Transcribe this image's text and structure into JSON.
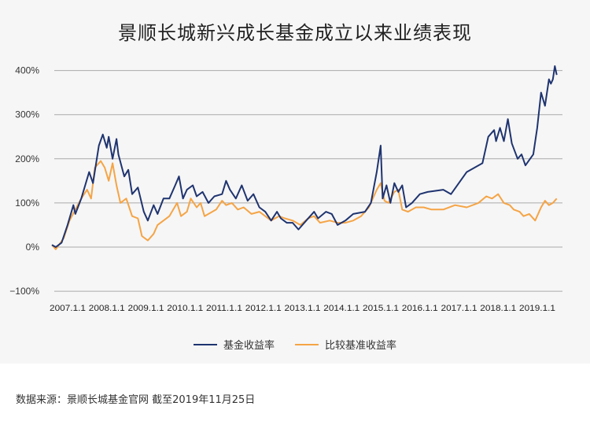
{
  "chart_data": {
    "type": "line",
    "title": "景顺长城新兴成长基金成立以来业绩表现",
    "xlabel": "",
    "ylabel": "",
    "ylim": [
      -100,
      400
    ],
    "yticks": [
      "400%",
      "300%",
      "200%",
      "100%",
      "0%",
      "−100%"
    ],
    "ytick_values": [
      400,
      300,
      200,
      100,
      0,
      -100
    ],
    "xticks": [
      "2007.1.1",
      "2008.1.1",
      "2009.1.1",
      "2010.1.1",
      "2011.1.1",
      "2012.1.1",
      "2013.1.1",
      "2014.1.1",
      "2015.1.1",
      "2016.1.1",
      "2017.1.1",
      "2018.1.1",
      "2019.1.1"
    ],
    "grid": true,
    "legend_position": "bottom",
    "colors": {
      "fund": "#1f3470",
      "benchmark": "#f5a445"
    },
    "series": [
      {
        "name": "基金收益率",
        "points": [
          [
            "2007-01-01",
            5
          ],
          [
            "2007-02-06",
            0
          ],
          [
            "2007-04-01",
            10
          ],
          [
            "2007-05-27",
            50
          ],
          [
            "2007-07-20",
            95
          ],
          [
            "2007-08-08",
            75
          ],
          [
            "2007-10-02",
            110
          ],
          [
            "2007-12-14",
            170
          ],
          [
            "2008-01-19",
            145
          ],
          [
            "2008-03-14",
            230
          ],
          [
            "2008-04-20",
            255
          ],
          [
            "2008-05-27",
            225
          ],
          [
            "2008-06-14",
            250
          ],
          [
            "2008-07-20",
            200
          ],
          [
            "2008-08-26",
            245
          ],
          [
            "2008-09-13",
            210
          ],
          [
            "2008-11-07",
            160
          ],
          [
            "2008-12-14",
            175
          ],
          [
            "2009-01-19",
            120
          ],
          [
            "2009-03-14",
            135
          ],
          [
            "2009-05-08",
            80
          ],
          [
            "2009-06-14",
            60
          ],
          [
            "2009-08-08",
            95
          ],
          [
            "2009-09-13",
            75
          ],
          [
            "2009-11-07",
            110
          ],
          [
            "2010-01-01",
            110
          ],
          [
            "2010-02-25",
            140
          ],
          [
            "2010-04-01",
            160
          ],
          [
            "2010-05-08",
            110
          ],
          [
            "2010-06-14",
            130
          ],
          [
            "2010-08-08",
            140
          ],
          [
            "2010-09-13",
            115
          ],
          [
            "2010-11-07",
            125
          ],
          [
            "2011-01-01",
            100
          ],
          [
            "2011-02-25",
            115
          ],
          [
            "2011-05-08",
            120
          ],
          [
            "2011-06-14",
            150
          ],
          [
            "2011-07-20",
            130
          ],
          [
            "2011-09-13",
            110
          ],
          [
            "2011-11-07",
            140
          ],
          [
            "2012-01-01",
            105
          ],
          [
            "2012-02-25",
            120
          ],
          [
            "2012-04-20",
            90
          ],
          [
            "2012-06-14",
            80
          ],
          [
            "2012-08-08",
            60
          ],
          [
            "2012-10-02",
            80
          ],
          [
            "2012-11-07",
            65
          ],
          [
            "2013-01-01",
            55
          ],
          [
            "2013-02-25",
            55
          ],
          [
            "2013-04-20",
            40
          ],
          [
            "2013-07-02",
            60
          ],
          [
            "2013-09-13",
            80
          ],
          [
            "2013-10-20",
            65
          ],
          [
            "2014-01-01",
            80
          ],
          [
            "2014-02-25",
            75
          ],
          [
            "2014-04-20",
            50
          ],
          [
            "2014-07-02",
            60
          ],
          [
            "2014-09-13",
            75
          ],
          [
            "2015-01-01",
            80
          ],
          [
            "2015-02-25",
            100
          ],
          [
            "2015-04-20",
            170
          ],
          [
            "2015-05-27",
            230
          ],
          [
            "2015-06-14",
            110
          ],
          [
            "2015-07-20",
            140
          ],
          [
            "2015-08-26",
            100
          ],
          [
            "2015-10-02",
            145
          ],
          [
            "2015-11-07",
            125
          ],
          [
            "2015-12-14",
            140
          ],
          [
            "2016-01-19",
            90
          ],
          [
            "2016-03-14",
            100
          ],
          [
            "2016-05-27",
            120
          ],
          [
            "2016-08-08",
            125
          ],
          [
            "2017-01-01",
            130
          ],
          [
            "2017-03-14",
            120
          ],
          [
            "2017-08-08",
            170
          ],
          [
            "2017-10-20",
            180
          ],
          [
            "2018-01-01",
            190
          ],
          [
            "2018-02-25",
            250
          ],
          [
            "2018-04-20",
            265
          ],
          [
            "2018-05-08",
            240
          ],
          [
            "2018-06-14",
            270
          ],
          [
            "2018-07-20",
            240
          ],
          [
            "2018-08-26",
            290
          ],
          [
            "2018-10-02",
            235
          ],
          [
            "2018-11-25",
            200
          ],
          [
            "2019-01-01",
            210
          ],
          [
            "2019-02-06",
            185
          ],
          [
            "2019-04-20",
            210
          ],
          [
            "2019-05-27",
            270
          ],
          [
            "2019-07-02",
            350
          ],
          [
            "2019-08-08",
            320
          ],
          [
            "2019-09-13",
            380
          ],
          [
            "2019-10-02",
            370
          ],
          [
            "2019-10-20",
            380
          ],
          [
            "2019-11-07",
            410
          ],
          [
            "2019-11-25",
            390
          ]
        ]
      },
      {
        "name": "比较基准收益率",
        "points": [
          [
            "2007-01-01",
            5
          ],
          [
            "2007-02-06",
            -5
          ],
          [
            "2007-04-20",
            20
          ],
          [
            "2007-06-14",
            60
          ],
          [
            "2007-08-08",
            85
          ],
          [
            "2007-10-02",
            110
          ],
          [
            "2007-11-25",
            130
          ],
          [
            "2008-01-01",
            110
          ],
          [
            "2008-02-06",
            180
          ],
          [
            "2008-04-01",
            195
          ],
          [
            "2008-05-08",
            180
          ],
          [
            "2008-06-14",
            150
          ],
          [
            "2008-07-20",
            190
          ],
          [
            "2008-08-26",
            140
          ],
          [
            "2008-10-02",
            100
          ],
          [
            "2008-11-25",
            110
          ],
          [
            "2009-01-19",
            70
          ],
          [
            "2009-03-14",
            65
          ],
          [
            "2009-04-20",
            25
          ],
          [
            "2009-06-14",
            15
          ],
          [
            "2009-08-08",
            30
          ],
          [
            "2009-09-13",
            50
          ],
          [
            "2009-11-07",
            60
          ],
          [
            "2010-01-01",
            70
          ],
          [
            "2010-03-14",
            100
          ],
          [
            "2010-04-20",
            70
          ],
          [
            "2010-06-14",
            80
          ],
          [
            "2010-07-20",
            110
          ],
          [
            "2010-09-13",
            90
          ],
          [
            "2010-10-20",
            100
          ],
          [
            "2010-11-25",
            70
          ],
          [
            "2011-01-01",
            75
          ],
          [
            "2011-03-14",
            85
          ],
          [
            "2011-05-08",
            105
          ],
          [
            "2011-06-14",
            95
          ],
          [
            "2011-08-08",
            100
          ],
          [
            "2011-10-02",
            85
          ],
          [
            "2011-11-25",
            90
          ],
          [
            "2012-02-06",
            75
          ],
          [
            "2012-04-20",
            80
          ],
          [
            "2012-06-14",
            70
          ],
          [
            "2012-08-08",
            60
          ],
          [
            "2012-10-20",
            70
          ],
          [
            "2012-12-14",
            65
          ],
          [
            "2013-02-25",
            60
          ],
          [
            "2013-05-08",
            50
          ],
          [
            "2013-07-20",
            65
          ],
          [
            "2013-09-13",
            70
          ],
          [
            "2013-11-07",
            55
          ],
          [
            "2014-02-06",
            60
          ],
          [
            "2014-04-20",
            55
          ],
          [
            "2014-07-02",
            55
          ],
          [
            "2014-09-13",
            60
          ],
          [
            "2014-11-25",
            70
          ],
          [
            "2015-02-06",
            90
          ],
          [
            "2015-04-20",
            130
          ],
          [
            "2015-05-27",
            145
          ],
          [
            "2015-07-02",
            105
          ],
          [
            "2015-08-08",
            100
          ],
          [
            "2015-10-02",
            125
          ],
          [
            "2015-11-07",
            130
          ],
          [
            "2015-12-14",
            85
          ],
          [
            "2016-02-06",
            80
          ],
          [
            "2016-04-20",
            90
          ],
          [
            "2016-07-02",
            90
          ],
          [
            "2016-09-13",
            85
          ],
          [
            "2017-01-01",
            85
          ],
          [
            "2017-04-20",
            95
          ],
          [
            "2017-08-08",
            90
          ],
          [
            "2017-11-25",
            100
          ],
          [
            "2018-02-06",
            115
          ],
          [
            "2018-04-01",
            110
          ],
          [
            "2018-05-27",
            120
          ],
          [
            "2018-07-20",
            100
          ],
          [
            "2018-09-13",
            95
          ],
          [
            "2018-10-20",
            85
          ],
          [
            "2018-12-14",
            80
          ],
          [
            "2019-01-19",
            70
          ],
          [
            "2019-03-14",
            75
          ],
          [
            "2019-05-08",
            60
          ],
          [
            "2019-07-02",
            90
          ],
          [
            "2019-08-08",
            105
          ],
          [
            "2019-09-13",
            95
          ],
          [
            "2019-10-20",
            100
          ],
          [
            "2019-11-25",
            110
          ]
        ]
      }
    ]
  },
  "legend": {
    "fund": "基金收益率",
    "benchmark": "比较基准收益率"
  },
  "footer": {
    "source": "数据来源：景顺长城基金官网 截至2019年11月25日"
  }
}
